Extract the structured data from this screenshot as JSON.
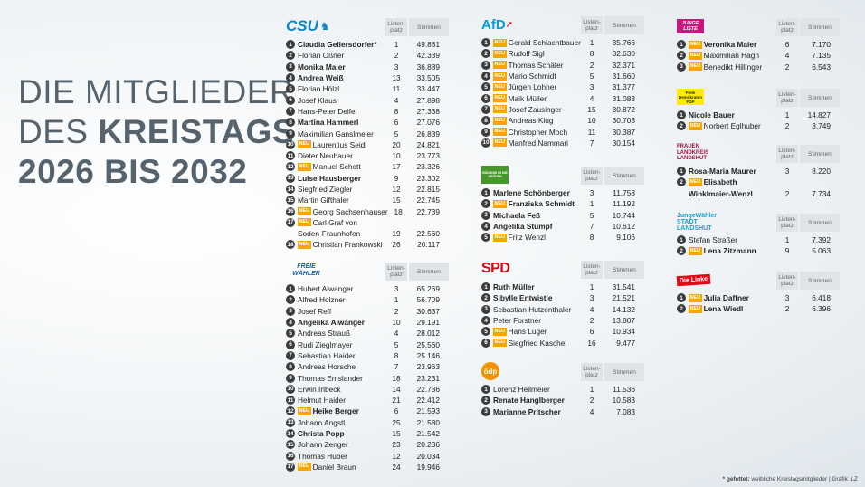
{
  "title": {
    "line1": "DIE MITGLIEDER",
    "line2_light": "DES ",
    "line2_bold": "KREISTAGS",
    "line3": "2026 BIS 2032"
  },
  "header": {
    "listenplatz": "Listen-\nplatz",
    "stimmen": "Stimmen"
  },
  "badge": "NEU",
  "footer": {
    "asterisk": "* gefettet:",
    "text": " weibliche Kreistagsmitglieder | Grafik: LZ"
  },
  "parties": [
    {
      "id": "csu",
      "logo_text": "CSU",
      "color": "#0a86c8",
      "rows": [
        {
          "n": "1",
          "name": "Claudia Geilersdorfer*",
          "lp": "1",
          "st": "49.881",
          "bold": true,
          "neu": false
        },
        {
          "n": "2",
          "name": "Florian Oßner",
          "lp": "2",
          "st": "42.339",
          "bold": false,
          "neu": false
        },
        {
          "n": "3",
          "name": "Monika Maier",
          "lp": "3",
          "st": "36.889",
          "bold": true,
          "neu": false
        },
        {
          "n": "4",
          "name": "Andrea Weiß",
          "lp": "13",
          "st": "33.505",
          "bold": true,
          "neu": false
        },
        {
          "n": "5",
          "name": "Florian Hölzl",
          "lp": "11",
          "st": "33.447",
          "bold": false,
          "neu": false
        },
        {
          "n": "6",
          "name": "Josef Klaus",
          "lp": "4",
          "st": "27.898",
          "bold": false,
          "neu": false
        },
        {
          "n": "7",
          "name": "Hans-Peter Deifel",
          "lp": "8",
          "st": "27.338",
          "bold": false,
          "neu": false
        },
        {
          "n": "8",
          "name": "Martina Hammerl",
          "lp": "6",
          "st": "27.076",
          "bold": true,
          "neu": false
        },
        {
          "n": "9",
          "name": "Maximilian Ganslmeier",
          "lp": "5",
          "st": "26.839",
          "bold": false,
          "neu": false
        },
        {
          "n": "10",
          "name": "Laurentius Seidl",
          "lp": "20",
          "st": "24.821",
          "bold": false,
          "neu": true
        },
        {
          "n": "11",
          "name": "Dieter Neubauer",
          "lp": "10",
          "st": "23.773",
          "bold": false,
          "neu": false
        },
        {
          "n": "12",
          "name": "Manuel Schott",
          "lp": "17",
          "st": "23.326",
          "bold": false,
          "neu": true
        },
        {
          "n": "13",
          "name": "Luise Hausberger",
          "lp": "9",
          "st": "23.302",
          "bold": true,
          "neu": false
        },
        {
          "n": "14",
          "name": "Siegfried Ziegler",
          "lp": "12",
          "st": "22.815",
          "bold": false,
          "neu": false
        },
        {
          "n": "15",
          "name": "Martin Gifthaler",
          "lp": "15",
          "st": "22.745",
          "bold": false,
          "neu": false
        },
        {
          "n": "16",
          "name": "Georg Sachsenhauser",
          "lp": "18",
          "st": "22.739",
          "bold": false,
          "neu": true
        },
        {
          "n": "17",
          "name": "Carl Graf von",
          "lp": "",
          "st": "",
          "bold": false,
          "neu": true
        },
        {
          "n": "",
          "name": "Soden-Fraunhofen",
          "lp": "19",
          "st": "22.560",
          "bold": false,
          "neu": false
        },
        {
          "n": "18",
          "name": "Christian Frankowski",
          "lp": "26",
          "st": "20.117",
          "bold": false,
          "neu": true
        }
      ]
    },
    {
      "id": "fw",
      "logo_text": "FREIE WÄHLER",
      "color": "#f39200",
      "rows": [
        {
          "n": "1",
          "name": "Hubert Aiwanger",
          "lp": "3",
          "st": "65.269",
          "bold": false,
          "neu": false
        },
        {
          "n": "2",
          "name": "Alfred Holzner",
          "lp": "1",
          "st": "56.709",
          "bold": false,
          "neu": false
        },
        {
          "n": "3",
          "name": "Josef Reff",
          "lp": "2",
          "st": "30.637",
          "bold": false,
          "neu": false
        },
        {
          "n": "4",
          "name": "Angelika Aiwanger",
          "lp": "10",
          "st": "29.191",
          "bold": true,
          "neu": false
        },
        {
          "n": "5",
          "name": "Andreas Strauß",
          "lp": "4",
          "st": "28.012",
          "bold": false,
          "neu": false
        },
        {
          "n": "6",
          "name": "Rudi Zieglmayer",
          "lp": "5",
          "st": "25.560",
          "bold": false,
          "neu": false
        },
        {
          "n": "7",
          "name": "Sebastian Haider",
          "lp": "8",
          "st": "25.146",
          "bold": false,
          "neu": false
        },
        {
          "n": "8",
          "name": "Andreas Horsche",
          "lp": "7",
          "st": "23.963",
          "bold": false,
          "neu": false
        },
        {
          "n": "9",
          "name": "Thomas Emslander",
          "lp": "18",
          "st": "23.231",
          "bold": false,
          "neu": false
        },
        {
          "n": "10",
          "name": "Erwin Irlbeck",
          "lp": "14",
          "st": "22.736",
          "bold": false,
          "neu": false
        },
        {
          "n": "11",
          "name": "Helmut Haider",
          "lp": "21",
          "st": "22.412",
          "bold": false,
          "neu": false
        },
        {
          "n": "12",
          "name": "Heike Berger",
          "lp": "6",
          "st": "21.593",
          "bold": true,
          "neu": true
        },
        {
          "n": "13",
          "name": "Johann Angstl",
          "lp": "25",
          "st": "21.580",
          "bold": false,
          "neu": false
        },
        {
          "n": "14",
          "name": "Christa Popp",
          "lp": "15",
          "st": "21.542",
          "bold": true,
          "neu": false
        },
        {
          "n": "15",
          "name": "Johann Zenger",
          "lp": "23",
          "st": "20.236",
          "bold": false,
          "neu": false
        },
        {
          "n": "16",
          "name": "Thomas Huber",
          "lp": "12",
          "st": "20.034",
          "bold": false,
          "neu": false
        },
        {
          "n": "17",
          "name": "Daniel Braun",
          "lp": "24",
          "st": "19.946",
          "bold": false,
          "neu": true
        }
      ]
    },
    {
      "id": "afd",
      "logo_text": "AfD",
      "color": "#009ee0",
      "rows": [
        {
          "n": "1",
          "name": "Gerald Schlachtbauer",
          "lp": "1",
          "st": "35.766",
          "bold": false,
          "neu": true
        },
        {
          "n": "2",
          "name": "Rudolf Sigl",
          "lp": "8",
          "st": "32.630",
          "bold": false,
          "neu": true
        },
        {
          "n": "3",
          "name": "Thomas Schäfer",
          "lp": "2",
          "st": "32.371",
          "bold": false,
          "neu": true
        },
        {
          "n": "4",
          "name": "Mario Schmidt",
          "lp": "5",
          "st": "31.660",
          "bold": false,
          "neu": true
        },
        {
          "n": "5",
          "name": "Jürgen Lohner",
          "lp": "3",
          "st": "31.377",
          "bold": false,
          "neu": true
        },
        {
          "n": "6",
          "name": "Maik Müller",
          "lp": "4",
          "st": "31.083",
          "bold": false,
          "neu": true
        },
        {
          "n": "7",
          "name": "Josef Zausinger",
          "lp": "15",
          "st": "30.872",
          "bold": false,
          "neu": true
        },
        {
          "n": "8",
          "name": "Andreas Klug",
          "lp": "10",
          "st": "30.703",
          "bold": false,
          "neu": true
        },
        {
          "n": "9",
          "name": "Christopher Moch",
          "lp": "11",
          "st": "30.387",
          "bold": false,
          "neu": true
        },
        {
          "n": "10",
          "name": "Manfred Nammari",
          "lp": "7",
          "st": "30.154",
          "bold": false,
          "neu": true
        }
      ]
    },
    {
      "id": "gruene",
      "logo_text": "BÜNDNIS 90 DIE GRÜNEN",
      "color": "#46962b",
      "rows": [
        {
          "n": "1",
          "name": "Marlene Schönberger",
          "lp": "3",
          "st": "11.758",
          "bold": true,
          "neu": false
        },
        {
          "n": "2",
          "name": "Franziska Schmidt",
          "lp": "1",
          "st": "11.192",
          "bold": true,
          "neu": true
        },
        {
          "n": "3",
          "name": "Michaela Feß",
          "lp": "5",
          "st": "10.744",
          "bold": true,
          "neu": false
        },
        {
          "n": "4",
          "name": "Angelika Stumpf",
          "lp": "7",
          "st": "10.612",
          "bold": true,
          "neu": false
        },
        {
          "n": "5",
          "name": "Fritz Wenzl",
          "lp": "8",
          "st": "9.106",
          "bold": false,
          "neu": true
        }
      ]
    },
    {
      "id": "spd",
      "logo_text": "SPD",
      "color": "#e3000f",
      "rows": [
        {
          "n": "1",
          "name": "Ruth Müller",
          "lp": "1",
          "st": "31.541",
          "bold": true,
          "neu": false
        },
        {
          "n": "2",
          "name": "Sibylle Entwistle",
          "lp": "3",
          "st": "21.521",
          "bold": true,
          "neu": false
        },
        {
          "n": "3",
          "name": "Sebastian Hutzenthaler",
          "lp": "4",
          "st": "14.132",
          "bold": false,
          "neu": false
        },
        {
          "n": "4",
          "name": "Peter Forstner",
          "lp": "2",
          "st": "13.807",
          "bold": false,
          "neu": false
        },
        {
          "n": "5",
          "name": "Hans Luger",
          "lp": "6",
          "st": "10.934",
          "bold": false,
          "neu": true
        },
        {
          "n": "6",
          "name": "Siegfried Kaschel",
          "lp": "16",
          "st": "9.477",
          "bold": false,
          "neu": true
        }
      ]
    },
    {
      "id": "oedp",
      "logo_text": "ödp",
      "color": "#f39200",
      "rows": [
        {
          "n": "1",
          "name": "Lorenz Heilmeier",
          "lp": "1",
          "st": "11.536",
          "bold": false,
          "neu": false
        },
        {
          "n": "2",
          "name": "Renate Hanglberger",
          "lp": "2",
          "st": "10.583",
          "bold": true,
          "neu": false
        },
        {
          "n": "3",
          "name": "Marianne Pritscher",
          "lp": "4",
          "st": "7.083",
          "bold": true,
          "neu": false
        }
      ]
    },
    {
      "id": "jl",
      "logo_text": "JUNGE LISTE",
      "color": "#c7177f",
      "rows": [
        {
          "n": "1",
          "name": "Veronika Maier",
          "lp": "6",
          "st": "7.170",
          "bold": true,
          "neu": true
        },
        {
          "n": "2",
          "name": "Maximilian Hagn",
          "lp": "4",
          "st": "7.135",
          "bold": false,
          "neu": true
        },
        {
          "n": "3",
          "name": "Benedikt Hillinger",
          "lp": "2",
          "st": "6.543",
          "bold": false,
          "neu": true
        }
      ]
    },
    {
      "id": "fdp",
      "logo_text": "Freie Demokraten FDP",
      "color": "#ffed00",
      "rows": [
        {
          "n": "1",
          "name": "Nicole Bauer",
          "lp": "1",
          "st": "14.827",
          "bold": true,
          "neu": false
        },
        {
          "n": "2",
          "name": "Norbert Eglhuber",
          "lp": "2",
          "st": "3.749",
          "bold": false,
          "neu": true
        }
      ]
    },
    {
      "id": "fll",
      "logo_text": "FRAUEN LANDKREIS LANDSHUT",
      "color": "#a3113e",
      "rows": [
        {
          "n": "1",
          "name": "Rosa-Maria Maurer",
          "lp": "3",
          "st": "8.220",
          "bold": true,
          "neu": false
        },
        {
          "n": "2",
          "name": "Elisabeth",
          "lp": "",
          "st": "",
          "bold": true,
          "neu": true
        },
        {
          "n": "",
          "name": "Winklmaier-Wenzl",
          "lp": "2",
          "st": "7.734",
          "bold": true,
          "neu": false
        }
      ]
    },
    {
      "id": "jw",
      "logo_text": "JungeWähler STADT LANDSHUT",
      "color": "#1aa2c9",
      "rows": [
        {
          "n": "1",
          "name": "Stefan Straßer",
          "lp": "1",
          "st": "7.392",
          "bold": false,
          "neu": false
        },
        {
          "n": "2",
          "name": "Lena Zitzmann",
          "lp": "9",
          "st": "5.063",
          "bold": true,
          "neu": true
        }
      ]
    },
    {
      "id": "linke",
      "logo_text": "Die Linke",
      "color": "#e30613",
      "rows": [
        {
          "n": "1",
          "name": "Julia Daffner",
          "lp": "3",
          "st": "6.418",
          "bold": true,
          "neu": true
        },
        {
          "n": "2",
          "name": "Lena Wiedl",
          "lp": "2",
          "st": "6.396",
          "bold": true,
          "neu": true
        }
      ]
    }
  ]
}
